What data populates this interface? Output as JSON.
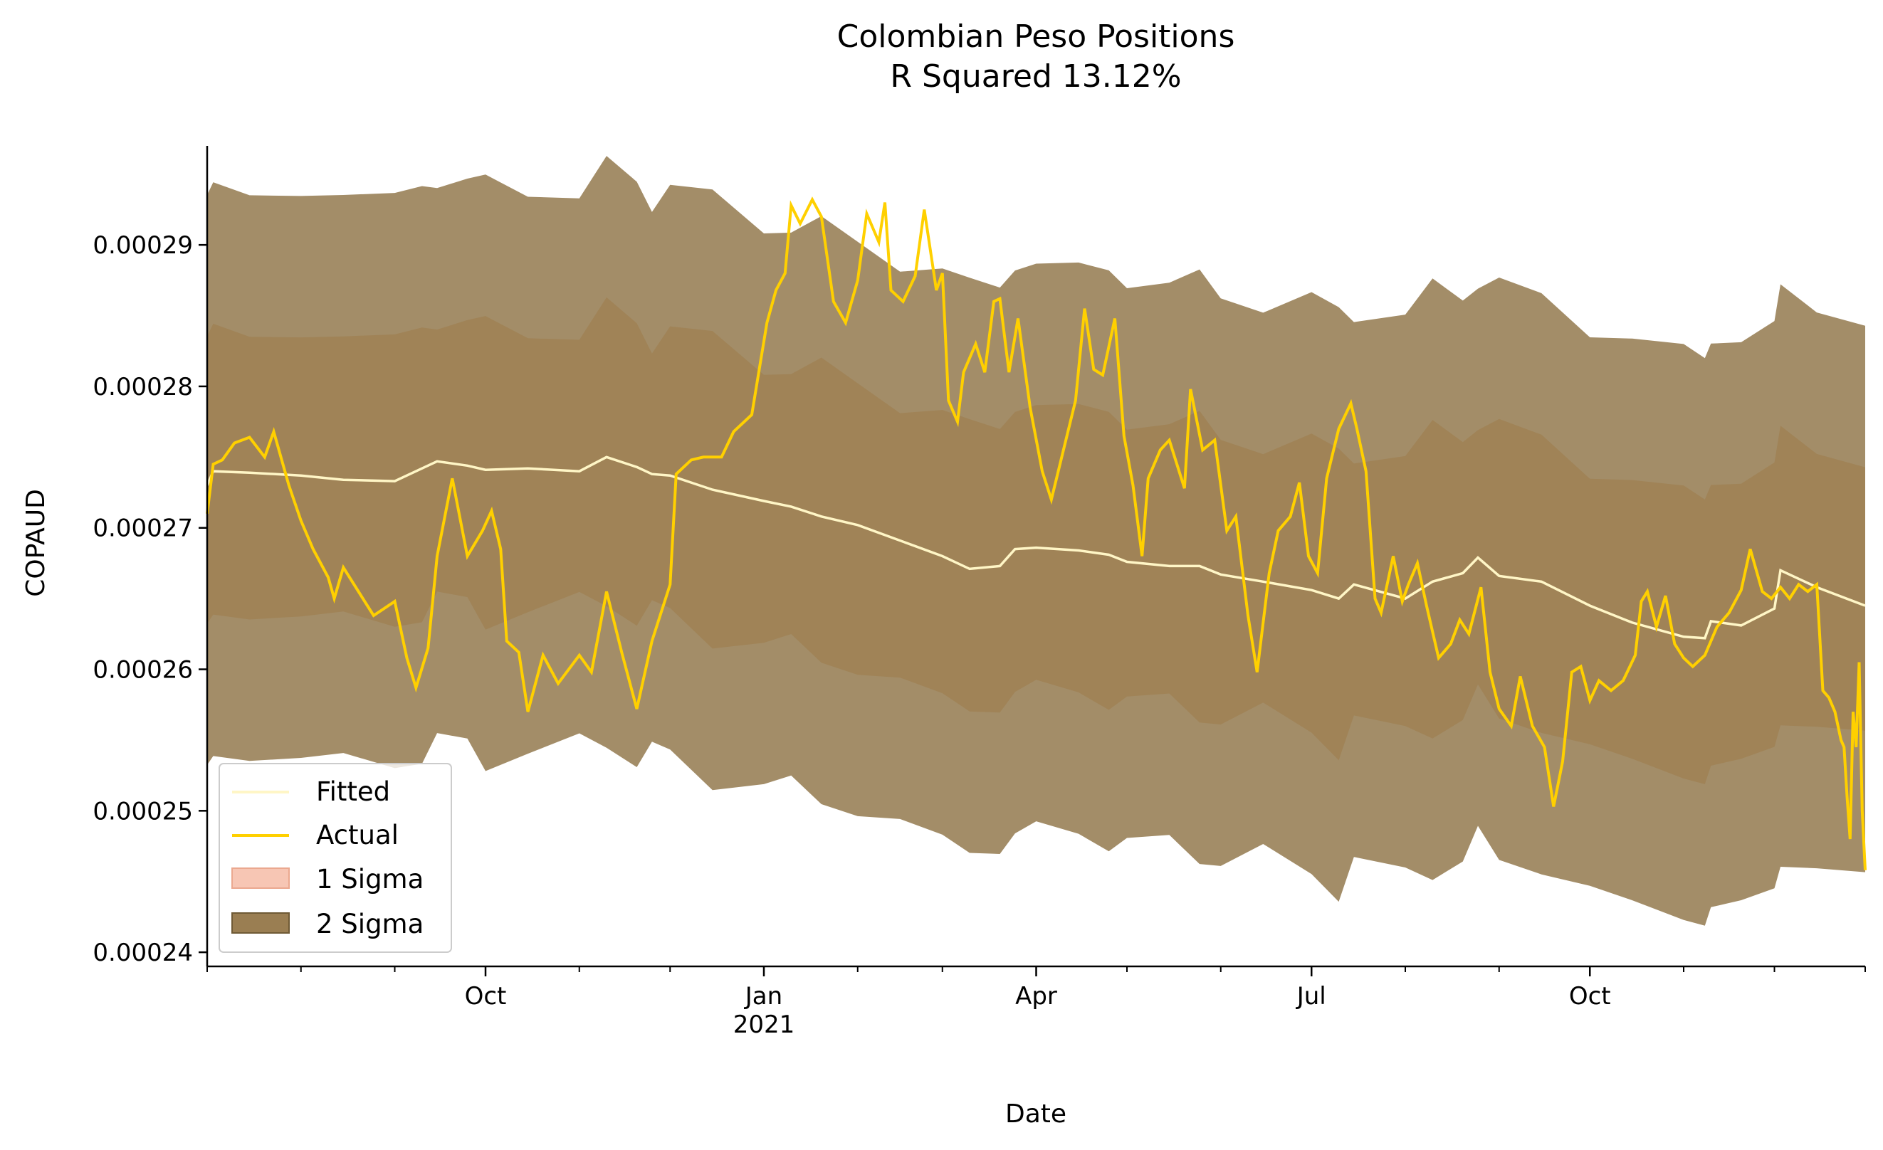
{
  "chart_data": {
    "type": "line",
    "title": "Colombian Peso Positions",
    "subtitle": "R Squared 13.12%",
    "xlabel": "Date",
    "ylabel": "COPAUD",
    "x_range": [
      "2020-07-01",
      "2021-12-31"
    ],
    "ylim": [
      0.000239,
      0.000297
    ],
    "y_ticks": [
      0.00024,
      0.00025,
      0.00026,
      0.00027,
      0.00028,
      0.00029
    ],
    "y_tick_labels": [
      "0.00024",
      "0.00025",
      "0.00026",
      "0.00027",
      "0.00028",
      "0.00029"
    ],
    "x_major_ticks": [
      {
        "date": "2020-10-01",
        "label": "Oct",
        "sublabel": ""
      },
      {
        "date": "2021-01-01",
        "label": "Jan",
        "sublabel": "2021"
      },
      {
        "date": "2021-04-01",
        "label": "Apr",
        "sublabel": ""
      },
      {
        "date": "2021-07-01",
        "label": "Jul",
        "sublabel": ""
      },
      {
        "date": "2021-10-01",
        "label": "Oct",
        "sublabel": ""
      }
    ],
    "x_minor_ticks": [
      "2020-07-01",
      "2020-08-01",
      "2020-09-01",
      "2020-11-01",
      "2020-12-01",
      "2021-02-01",
      "2021-03-01",
      "2021-05-01",
      "2021-06-01",
      "2021-08-01",
      "2021-09-01",
      "2021-11-01",
      "2021-12-01",
      "2021-12-31"
    ],
    "legend": {
      "placement": "lower-left",
      "entries": [
        {
          "label": "Fitted",
          "kind": "line",
          "color": "#fff6c6"
        },
        {
          "label": "Actual",
          "kind": "line",
          "color": "#ffd000"
        },
        {
          "label": "1 Sigma",
          "kind": "patch",
          "color": "#f7c6b4"
        },
        {
          "label": "2 Sigma",
          "kind": "patch",
          "color": "#9a7e52"
        }
      ]
    },
    "colors": {
      "outer_band": "#a38d68",
      "inner_band": "#a08357",
      "fitted": "#fff6c6",
      "actual": "#ffd000",
      "axis": "#000000"
    },
    "band_widths": {
      "one_sigma": 1e-05,
      "two_sigma": 2e-05
    },
    "series": [
      {
        "name": "Fitted",
        "points": [
          [
            "2020-07-01",
            0.000273
          ],
          [
            "2020-07-03",
            0.000274
          ],
          [
            "2020-07-15",
            0.0002739
          ],
          [
            "2020-08-01",
            0.0002737
          ],
          [
            "2020-08-15",
            0.0002734
          ],
          [
            "2020-09-01",
            0.0002733
          ],
          [
            "2020-09-10",
            0.0002742
          ],
          [
            "2020-09-15",
            0.0002747
          ],
          [
            "2020-09-25",
            0.0002744
          ],
          [
            "2020-10-01",
            0.0002741
          ],
          [
            "2020-10-15",
            0.0002742
          ],
          [
            "2020-11-01",
            0.000274
          ],
          [
            "2020-11-10",
            0.000275
          ],
          [
            "2020-11-20",
            0.0002743
          ],
          [
            "2020-11-25",
            0.0002738
          ],
          [
            "2020-12-01",
            0.0002737
          ],
          [
            "2020-12-15",
            0.0002727
          ],
          [
            "2021-01-01",
            0.0002719
          ],
          [
            "2021-01-10",
            0.0002715
          ],
          [
            "2021-01-20",
            0.0002708
          ],
          [
            "2021-02-01",
            0.0002702
          ],
          [
            "2021-02-15",
            0.0002691
          ],
          [
            "2021-03-01",
            0.000268
          ],
          [
            "2021-03-10",
            0.0002671
          ],
          [
            "2021-03-20",
            0.0002673
          ],
          [
            "2021-03-25",
            0.0002685
          ],
          [
            "2021-04-01",
            0.0002686
          ],
          [
            "2021-04-15",
            0.0002684
          ],
          [
            "2021-04-25",
            0.0002681
          ],
          [
            "2021-05-01",
            0.0002676
          ],
          [
            "2021-05-15",
            0.0002673
          ],
          [
            "2021-05-25",
            0.0002673
          ],
          [
            "2021-06-01",
            0.0002667
          ],
          [
            "2021-06-15",
            0.0002662
          ],
          [
            "2021-07-01",
            0.0002656
          ],
          [
            "2021-07-10",
            0.000265
          ],
          [
            "2021-07-15",
            0.000266
          ],
          [
            "2021-08-01",
            0.000265
          ],
          [
            "2021-08-10",
            0.0002662
          ],
          [
            "2021-08-20",
            0.0002668
          ],
          [
            "2021-08-25",
            0.0002679
          ],
          [
            "2021-09-01",
            0.0002666
          ],
          [
            "2021-09-15",
            0.0002662
          ],
          [
            "2021-10-01",
            0.0002645
          ],
          [
            "2021-10-15",
            0.0002633
          ],
          [
            "2021-11-01",
            0.0002623
          ],
          [
            "2021-11-08",
            0.0002622
          ],
          [
            "2021-11-10",
            0.0002634
          ],
          [
            "2021-11-20",
            0.0002631
          ],
          [
            "2021-12-01",
            0.0002643
          ],
          [
            "2021-12-03",
            0.000267
          ],
          [
            "2021-12-15",
            0.0002658
          ],
          [
            "2021-12-31",
            0.0002645
          ]
        ]
      },
      {
        "name": "Actual",
        "points": [
          [
            "2020-07-01",
            0.000271
          ],
          [
            "2020-07-03",
            0.0002745
          ],
          [
            "2020-07-06",
            0.0002748
          ],
          [
            "2020-07-10",
            0.000276
          ],
          [
            "2020-07-15",
            0.0002764
          ],
          [
            "2020-07-20",
            0.000275
          ],
          [
            "2020-07-23",
            0.0002768
          ],
          [
            "2020-07-28",
            0.000273
          ],
          [
            "2020-08-01",
            0.0002705
          ],
          [
            "2020-08-05",
            0.0002685
          ],
          [
            "2020-08-10",
            0.0002665
          ],
          [
            "2020-08-12",
            0.000265
          ],
          [
            "2020-08-15",
            0.0002672
          ],
          [
            "2020-08-20",
            0.0002655
          ],
          [
            "2020-08-25",
            0.0002638
          ],
          [
            "2020-09-01",
            0.0002648
          ],
          [
            "2020-09-05",
            0.0002608
          ],
          [
            "2020-09-08",
            0.0002587
          ],
          [
            "2020-09-12",
            0.0002615
          ],
          [
            "2020-09-15",
            0.000268
          ],
          [
            "2020-09-20",
            0.0002735
          ],
          [
            "2020-09-25",
            0.000268
          ],
          [
            "2020-09-30",
            0.0002698
          ],
          [
            "2020-10-03",
            0.0002712
          ],
          [
            "2020-10-06",
            0.0002685
          ],
          [
            "2020-10-08",
            0.000262
          ],
          [
            "2020-10-12",
            0.0002612
          ],
          [
            "2020-10-15",
            0.000257
          ],
          [
            "2020-10-20",
            0.000261
          ],
          [
            "2020-10-25",
            0.000259
          ],
          [
            "2020-11-01",
            0.000261
          ],
          [
            "2020-11-05",
            0.0002598
          ],
          [
            "2020-11-10",
            0.0002655
          ],
          [
            "2020-11-15",
            0.0002612
          ],
          [
            "2020-11-20",
            0.0002572
          ],
          [
            "2020-11-25",
            0.000262
          ],
          [
            "2020-12-01",
            0.000266
          ],
          [
            "2020-12-03",
            0.0002738
          ],
          [
            "2020-12-08",
            0.0002748
          ],
          [
            "2020-12-12",
            0.000275
          ],
          [
            "2020-12-18",
            0.000275
          ],
          [
            "2020-12-22",
            0.0002768
          ],
          [
            "2020-12-28",
            0.000278
          ],
          [
            "2021-01-02",
            0.0002845
          ],
          [
            "2021-01-05",
            0.0002868
          ],
          [
            "2021-01-08",
            0.000288
          ],
          [
            "2021-01-10",
            0.0002928
          ],
          [
            "2021-01-13",
            0.0002915
          ],
          [
            "2021-01-17",
            0.0002932
          ],
          [
            "2021-01-20",
            0.000292
          ],
          [
            "2021-01-24",
            0.000286
          ],
          [
            "2021-01-28",
            0.0002845
          ],
          [
            "2021-02-01",
            0.0002875
          ],
          [
            "2021-02-04",
            0.0002922
          ],
          [
            "2021-02-08",
            0.0002902
          ],
          [
            "2021-02-10",
            0.000293
          ],
          [
            "2021-02-12",
            0.0002868
          ],
          [
            "2021-02-16",
            0.000286
          ],
          [
            "2021-02-20",
            0.0002878
          ],
          [
            "2021-02-23",
            0.0002925
          ],
          [
            "2021-02-27",
            0.0002868
          ],
          [
            "2021-03-01",
            0.000288
          ],
          [
            "2021-03-03",
            0.000279
          ],
          [
            "2021-03-06",
            0.0002775
          ],
          [
            "2021-03-08",
            0.000281
          ],
          [
            "2021-03-12",
            0.000283
          ],
          [
            "2021-03-15",
            0.000281
          ],
          [
            "2021-03-18",
            0.000286
          ],
          [
            "2021-03-20",
            0.0002862
          ],
          [
            "2021-03-23",
            0.000281
          ],
          [
            "2021-03-26",
            0.0002848
          ],
          [
            "2021-03-30",
            0.0002785
          ],
          [
            "2021-04-03",
            0.000274
          ],
          [
            "2021-04-06",
            0.000272
          ],
          [
            "2021-04-10",
            0.0002755
          ],
          [
            "2021-04-14",
            0.000279
          ],
          [
            "2021-04-17",
            0.0002855
          ],
          [
            "2021-04-20",
            0.0002812
          ],
          [
            "2021-04-23",
            0.0002808
          ],
          [
            "2021-04-27",
            0.0002848
          ],
          [
            "2021-04-30",
            0.0002765
          ],
          [
            "2021-05-03",
            0.000273
          ],
          [
            "2021-05-06",
            0.000268
          ],
          [
            "2021-05-08",
            0.0002735
          ],
          [
            "2021-05-12",
            0.0002755
          ],
          [
            "2021-05-15",
            0.0002762
          ],
          [
            "2021-05-20",
            0.0002728
          ],
          [
            "2021-05-22",
            0.0002798
          ],
          [
            "2021-05-26",
            0.0002755
          ],
          [
            "2021-05-30",
            0.0002762
          ],
          [
            "2021-06-03",
            0.0002698
          ],
          [
            "2021-06-06",
            0.0002708
          ],
          [
            "2021-06-10",
            0.0002638
          ],
          [
            "2021-06-13",
            0.0002598
          ],
          [
            "2021-06-17",
            0.0002668
          ],
          [
            "2021-06-20",
            0.0002698
          ],
          [
            "2021-06-24",
            0.0002708
          ],
          [
            "2021-06-27",
            0.0002732
          ],
          [
            "2021-06-30",
            0.000268
          ],
          [
            "2021-07-03",
            0.0002668
          ],
          [
            "2021-07-06",
            0.0002735
          ],
          [
            "2021-07-10",
            0.000277
          ],
          [
            "2021-07-14",
            0.0002788
          ],
          [
            "2021-07-16",
            0.000277
          ],
          [
            "2021-07-19",
            0.000274
          ],
          [
            "2021-07-22",
            0.000265
          ],
          [
            "2021-07-24",
            0.000264
          ],
          [
            "2021-07-28",
            0.000268
          ],
          [
            "2021-07-31",
            0.0002648
          ],
          [
            "2021-08-02",
            0.000266
          ],
          [
            "2021-08-05",
            0.0002675
          ],
          [
            "2021-08-08",
            0.0002645
          ],
          [
            "2021-08-12",
            0.0002608
          ],
          [
            "2021-08-16",
            0.0002618
          ],
          [
            "2021-08-19",
            0.0002635
          ],
          [
            "2021-08-22",
            0.0002625
          ],
          [
            "2021-08-26",
            0.0002658
          ],
          [
            "2021-08-29",
            0.0002598
          ],
          [
            "2021-09-01",
            0.0002572
          ],
          [
            "2021-09-05",
            0.000256
          ],
          [
            "2021-09-08",
            0.0002595
          ],
          [
            "2021-09-12",
            0.000256
          ],
          [
            "2021-09-16",
            0.0002545
          ],
          [
            "2021-09-19",
            0.0002503
          ],
          [
            "2021-09-22",
            0.0002535
          ],
          [
            "2021-09-25",
            0.0002598
          ],
          [
            "2021-09-28",
            0.0002602
          ],
          [
            "2021-10-01",
            0.0002578
          ],
          [
            "2021-10-04",
            0.0002592
          ],
          [
            "2021-10-08",
            0.0002585
          ],
          [
            "2021-10-12",
            0.0002592
          ],
          [
            "2021-10-16",
            0.000261
          ],
          [
            "2021-10-18",
            0.0002648
          ],
          [
            "2021-10-20",
            0.0002655
          ],
          [
            "2021-10-23",
            0.000263
          ],
          [
            "2021-10-26",
            0.0002652
          ],
          [
            "2021-10-29",
            0.0002618
          ],
          [
            "2021-11-01",
            0.0002608
          ],
          [
            "2021-11-04",
            0.0002602
          ],
          [
            "2021-11-08",
            0.000261
          ],
          [
            "2021-11-12",
            0.000263
          ],
          [
            "2021-11-16",
            0.000264
          ],
          [
            "2021-11-20",
            0.0002656
          ],
          [
            "2021-11-23",
            0.0002685
          ],
          [
            "2021-11-27",
            0.0002655
          ],
          [
            "2021-11-30",
            0.000265
          ],
          [
            "2021-12-03",
            0.0002658
          ],
          [
            "2021-12-06",
            0.000265
          ],
          [
            "2021-12-09",
            0.000266
          ],
          [
            "2021-12-12",
            0.0002655
          ],
          [
            "2021-12-15",
            0.000266
          ],
          [
            "2021-12-17",
            0.0002585
          ],
          [
            "2021-12-19",
            0.000258
          ],
          [
            "2021-12-21",
            0.000257
          ],
          [
            "2021-12-23",
            0.000255
          ],
          [
            "2021-12-24",
            0.0002545
          ],
          [
            "2021-12-25",
            0.000251
          ],
          [
            "2021-12-26",
            0.000248
          ],
          [
            "2021-12-27",
            0.000257
          ],
          [
            "2021-12-28",
            0.0002545
          ],
          [
            "2021-12-29",
            0.0002605
          ],
          [
            "2021-12-30",
            0.00025
          ],
          [
            "2021-12-31",
            0.0002458
          ]
        ]
      }
    ]
  }
}
